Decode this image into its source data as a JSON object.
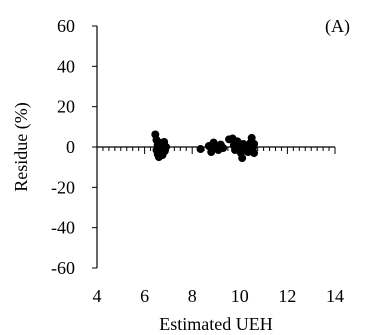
{
  "chart_data": {
    "type": "scatter",
    "panel_label": "(A)",
    "xlabel": "Estimated UEH",
    "ylabel": "Residue (%)",
    "xlim": [
      4,
      14
    ],
    "ylim": [
      -60,
      60
    ],
    "x_ticks": [
      4,
      6,
      8,
      10,
      12,
      14
    ],
    "y_ticks": [
      60,
      40,
      20,
      0,
      -20,
      -40,
      -60
    ],
    "x_tick_labels": [
      "4",
      "6",
      "8",
      "10",
      "12",
      "14"
    ],
    "y_tick_labels": [
      "60",
      "40",
      "20",
      "0",
      "-20",
      "-40",
      "-60"
    ],
    "x_minor_step": 0.25,
    "grid": false,
    "marker_color": "#000000",
    "points": [
      {
        "x": 6.45,
        "y": 6.2
      },
      {
        "x": 6.5,
        "y": 3.5
      },
      {
        "x": 6.55,
        "y": 1.0
      },
      {
        "x": 6.5,
        "y": -1.5
      },
      {
        "x": 6.55,
        "y": -3.5
      },
      {
        "x": 6.6,
        "y": -5.0
      },
      {
        "x": 6.65,
        "y": 2.0
      },
      {
        "x": 6.7,
        "y": -0.5
      },
      {
        "x": 6.72,
        "y": -2.5
      },
      {
        "x": 6.78,
        "y": 0.8
      },
      {
        "x": 6.82,
        "y": 2.5
      },
      {
        "x": 6.85,
        "y": -2.0
      },
      {
        "x": 6.9,
        "y": 0.0
      },
      {
        "x": 6.6,
        "y": 0.5
      },
      {
        "x": 6.75,
        "y": -4.0
      },
      {
        "x": 8.35,
        "y": -1.0
      },
      {
        "x": 8.7,
        "y": 0.5
      },
      {
        "x": 8.8,
        "y": -2.5
      },
      {
        "x": 8.9,
        "y": 2.2
      },
      {
        "x": 9.0,
        "y": 0.0
      },
      {
        "x": 9.1,
        "y": -1.5
      },
      {
        "x": 9.2,
        "y": 1.2
      },
      {
        "x": 9.3,
        "y": -0.5
      },
      {
        "x": 9.55,
        "y": 3.8
      },
      {
        "x": 9.7,
        "y": 4.2
      },
      {
        "x": 9.75,
        "y": 0.8
      },
      {
        "x": 9.8,
        "y": -1.5
      },
      {
        "x": 9.9,
        "y": 2.8
      },
      {
        "x": 10.0,
        "y": 0.0
      },
      {
        "x": 10.05,
        "y": -3.0
      },
      {
        "x": 10.1,
        "y": -5.5
      },
      {
        "x": 10.15,
        "y": 1.5
      },
      {
        "x": 10.2,
        "y": -1.0
      },
      {
        "x": 10.3,
        "y": 0.5
      },
      {
        "x": 10.35,
        "y": -2.5
      },
      {
        "x": 10.45,
        "y": 2.0
      },
      {
        "x": 10.5,
        "y": 4.5
      },
      {
        "x": 10.55,
        "y": -0.5
      },
      {
        "x": 10.6,
        "y": 1.5
      },
      {
        "x": 10.6,
        "y": -3.0
      }
    ]
  }
}
